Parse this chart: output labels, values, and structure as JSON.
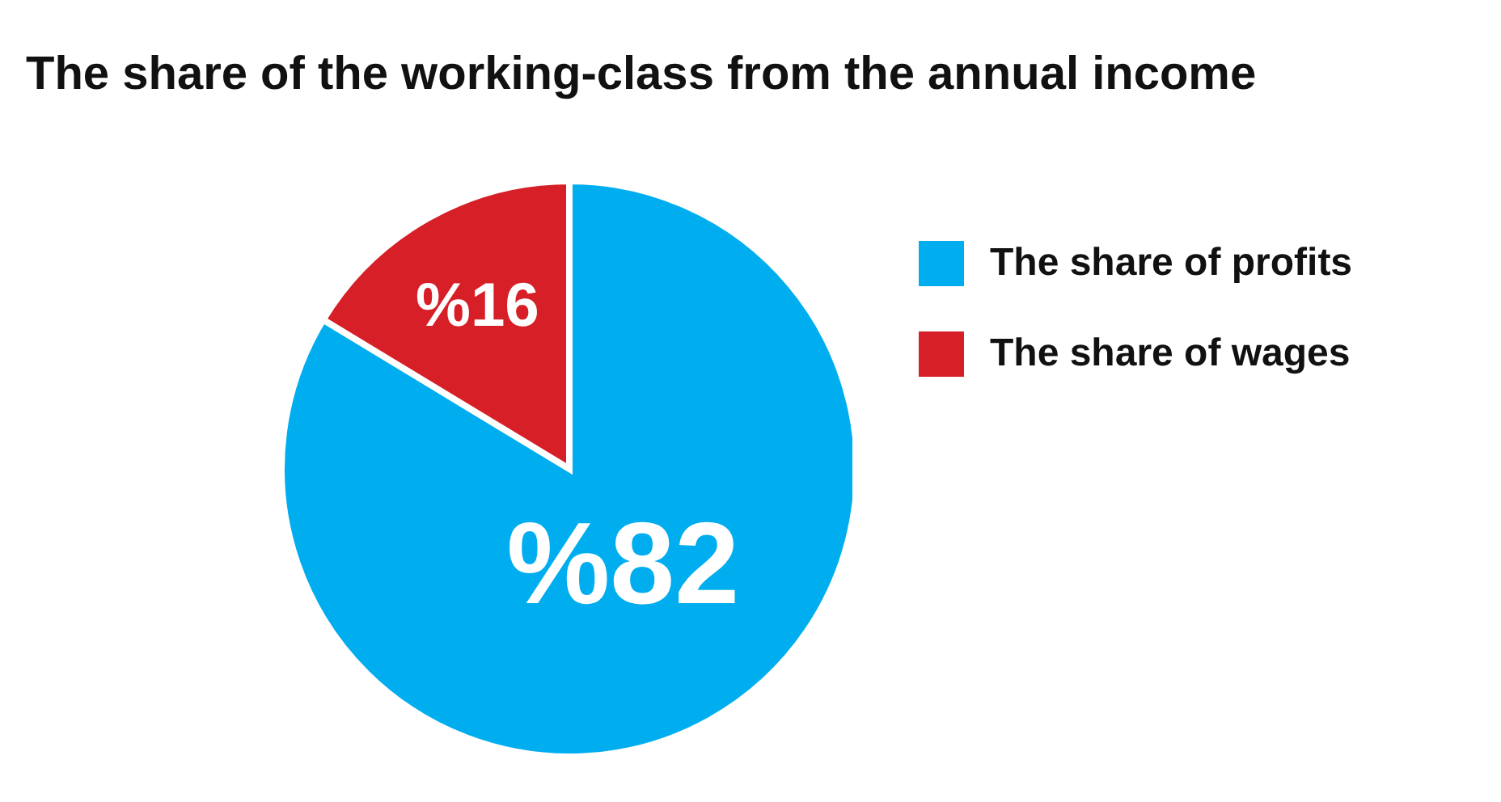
{
  "chart_data": {
    "type": "pie",
    "title": "The share of the working-class from the annual income",
    "categories": [
      "The share of profits",
      "The share of wages"
    ],
    "values": [
      82,
      16
    ],
    "colors": [
      "#00aeef",
      "#d71f27"
    ],
    "value_labels": [
      "%82",
      "%16"
    ],
    "legend": "right"
  }
}
